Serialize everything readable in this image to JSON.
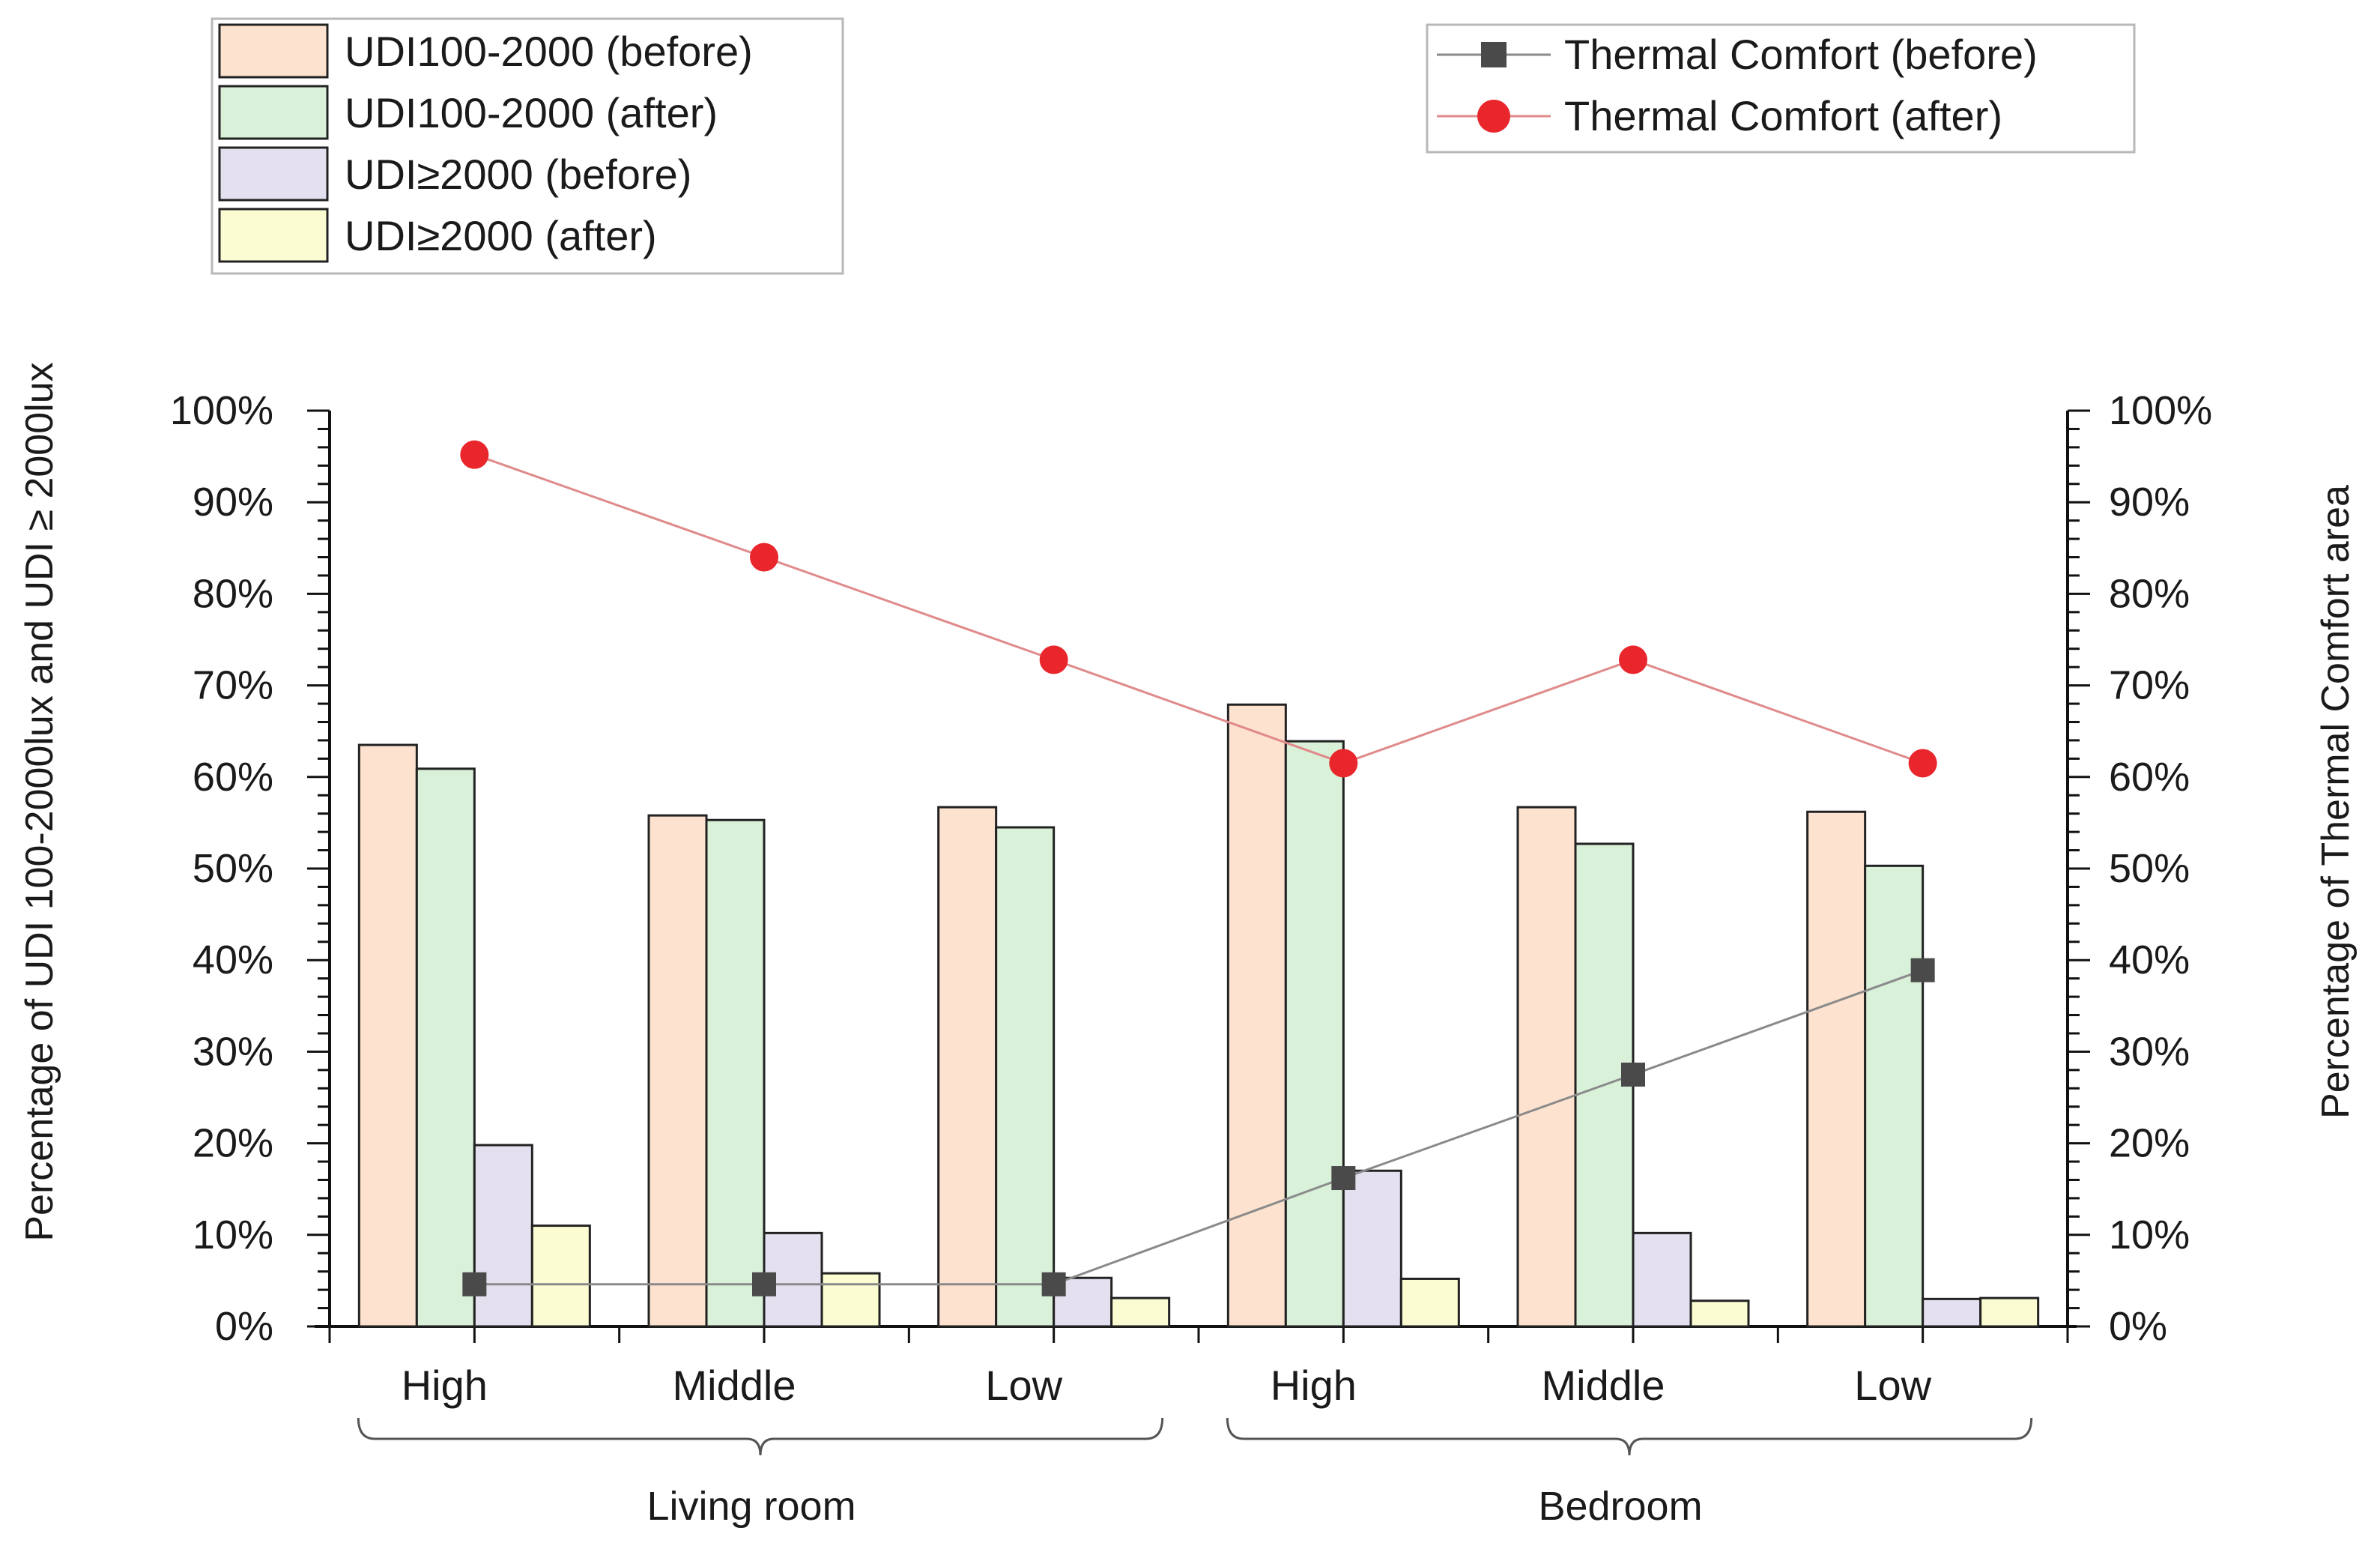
{
  "chart_data": {
    "type": "bar",
    "groups": [
      {
        "label": "Living room",
        "categories": [
          "High",
          "Middle",
          "Low"
        ]
      },
      {
        "label": "Bedroom",
        "categories": [
          "High",
          "Middle",
          "Low"
        ]
      }
    ],
    "categories": [
      "High",
      "Middle",
      "Low",
      "High",
      "Middle",
      "Low"
    ],
    "series": [
      {
        "name": "UDI100-2000 (before)",
        "kind": "bar",
        "axis": "left",
        "color": "#fde3cf",
        "values": [
          63.5,
          55.8,
          56.7,
          67.9,
          56.7,
          56.2
        ]
      },
      {
        "name": "UDI100-2000 (after)",
        "kind": "bar",
        "axis": "left",
        "color": "#d9f0d9",
        "values": [
          60.9,
          55.3,
          54.5,
          63.9,
          52.7,
          50.3
        ]
      },
      {
        "name": "UDI≥2000 (before)",
        "kind": "bar",
        "axis": "left",
        "color": "#e4e0f0",
        "values": [
          19.8,
          10.2,
          5.3,
          17.0,
          10.2,
          3.0
        ]
      },
      {
        "name": "UDI≥2000 (after)",
        "kind": "bar",
        "axis": "left",
        "color": "#fcfcd2",
        "values": [
          11.0,
          5.8,
          3.1,
          5.2,
          2.8,
          3.1
        ]
      },
      {
        "name": "Thermal Comfort (before)",
        "kind": "line",
        "axis": "right",
        "color": "#4a4a4a",
        "marker": "square",
        "values": [
          4.6,
          4.6,
          4.6,
          16.2,
          27.5,
          38.9
        ]
      },
      {
        "name": "Thermal Comfort (after)",
        "kind": "line",
        "axis": "right",
        "color": "#e8262b",
        "marker": "circle",
        "values": [
          95.2,
          84.0,
          72.8,
          61.5,
          72.8,
          61.5
        ]
      }
    ],
    "y_left": {
      "label": "Percentage of UDI 100-2000lux and UDI ≥ 2000lux",
      "min": 0,
      "max": 100,
      "ticks": [
        "0%",
        "10%",
        "20%",
        "30%",
        "40%",
        "50%",
        "60%",
        "70%",
        "80%",
        "90%",
        "100%"
      ]
    },
    "y_right": {
      "label": "Percentage of Thermal Comfort area",
      "min": 0,
      "max": 100,
      "ticks": [
        "0%",
        "10%",
        "20%",
        "30%",
        "40%",
        "50%",
        "60%",
        "70%",
        "80%",
        "90%",
        "100%"
      ]
    },
    "legend_bars": [
      "UDI100-2000 (before)",
      "UDI100-2000 (after)",
      "UDI≥2000 (before)",
      "UDI≥2000 (after)"
    ],
    "legend_lines": [
      "Thermal Comfort (before)",
      "Thermal Comfort (after)"
    ],
    "grid": false
  }
}
